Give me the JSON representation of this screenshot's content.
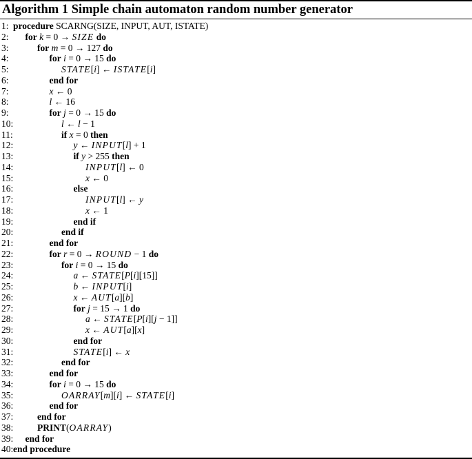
{
  "algorithm": {
    "title": "Algorithm 1 Simple chain automaton random number generator",
    "lines": [
      {
        "n": "1:",
        "indent": 0,
        "parts": [
          {
            "t": "procedure",
            "s": "kw"
          },
          {
            "t": " SCARNG(SIZE, INPUT, AUT, ISTATE)"
          }
        ]
      },
      {
        "n": "2:",
        "indent": 1,
        "parts": [
          {
            "t": "for",
            "s": "kw"
          },
          {
            "t": " "
          },
          {
            "t": "k",
            "s": "v"
          },
          {
            "t": " = 0 → "
          },
          {
            "t": "SIZE",
            "s": "big"
          },
          {
            "t": " "
          },
          {
            "t": "do",
            "s": "kw"
          }
        ]
      },
      {
        "n": "3:",
        "indent": 2,
        "parts": [
          {
            "t": "for",
            "s": "kw"
          },
          {
            "t": " "
          },
          {
            "t": "m",
            "s": "v"
          },
          {
            "t": " = 0 → 127 "
          },
          {
            "t": "do",
            "s": "kw"
          }
        ]
      },
      {
        "n": "4:",
        "indent": 3,
        "parts": [
          {
            "t": "for",
            "s": "kw"
          },
          {
            "t": " "
          },
          {
            "t": "i",
            "s": "v"
          },
          {
            "t": " = 0 → 15 "
          },
          {
            "t": "do",
            "s": "kw"
          }
        ]
      },
      {
        "n": "5:",
        "indent": 4,
        "parts": [
          {
            "t": "STATE",
            "s": "big"
          },
          {
            "t": "["
          },
          {
            "t": "i",
            "s": "v"
          },
          {
            "t": "] ← "
          },
          {
            "t": "ISTATE",
            "s": "big"
          },
          {
            "t": "["
          },
          {
            "t": "i",
            "s": "v"
          },
          {
            "t": "]"
          }
        ]
      },
      {
        "n": "6:",
        "indent": 3,
        "parts": [
          {
            "t": "end for",
            "s": "kw"
          }
        ]
      },
      {
        "n": "7:",
        "indent": 3,
        "parts": [
          {
            "t": "x",
            "s": "v"
          },
          {
            "t": " ← 0"
          }
        ]
      },
      {
        "n": "8:",
        "indent": 3,
        "parts": [
          {
            "t": "l",
            "s": "v"
          },
          {
            "t": " ← 16"
          }
        ]
      },
      {
        "n": "9:",
        "indent": 3,
        "parts": [
          {
            "t": "for",
            "s": "kw"
          },
          {
            "t": " "
          },
          {
            "t": "j",
            "s": "v"
          },
          {
            "t": " = 0 → 15 "
          },
          {
            "t": "do",
            "s": "kw"
          }
        ]
      },
      {
        "n": "10:",
        "indent": 4,
        "parts": [
          {
            "t": "l",
            "s": "v"
          },
          {
            "t": " ← "
          },
          {
            "t": "l",
            "s": "v"
          },
          {
            "t": " − 1"
          }
        ]
      },
      {
        "n": "11:",
        "indent": 4,
        "parts": [
          {
            "t": "if",
            "s": "kw"
          },
          {
            "t": " "
          },
          {
            "t": "x",
            "s": "v"
          },
          {
            "t": " = 0 "
          },
          {
            "t": "then",
            "s": "kw"
          }
        ]
      },
      {
        "n": "12:",
        "indent": 5,
        "parts": [
          {
            "t": "y",
            "s": "v"
          },
          {
            "t": " ← "
          },
          {
            "t": "INPUT",
            "s": "big"
          },
          {
            "t": "["
          },
          {
            "t": "l",
            "s": "v"
          },
          {
            "t": "] + 1"
          }
        ]
      },
      {
        "n": "13:",
        "indent": 5,
        "parts": [
          {
            "t": "if",
            "s": "kw"
          },
          {
            "t": " "
          },
          {
            "t": "y",
            "s": "v"
          },
          {
            "t": " > 255 "
          },
          {
            "t": "then",
            "s": "kw"
          }
        ]
      },
      {
        "n": "14:",
        "indent": 6,
        "parts": [
          {
            "t": "INPUT",
            "s": "big"
          },
          {
            "t": "["
          },
          {
            "t": "l",
            "s": "v"
          },
          {
            "t": "] ← 0"
          }
        ]
      },
      {
        "n": "15:",
        "indent": 6,
        "parts": [
          {
            "t": "x",
            "s": "v"
          },
          {
            "t": " ← 0"
          }
        ]
      },
      {
        "n": "16:",
        "indent": 5,
        "parts": [
          {
            "t": "else",
            "s": "kw"
          }
        ]
      },
      {
        "n": "17:",
        "indent": 6,
        "parts": [
          {
            "t": "INPUT",
            "s": "big"
          },
          {
            "t": "["
          },
          {
            "t": "l",
            "s": "v"
          },
          {
            "t": "] ← "
          },
          {
            "t": "y",
            "s": "v"
          }
        ]
      },
      {
        "n": "18:",
        "indent": 6,
        "parts": [
          {
            "t": "x",
            "s": "v"
          },
          {
            "t": " ← 1"
          }
        ]
      },
      {
        "n": "19:",
        "indent": 5,
        "parts": [
          {
            "t": "end if",
            "s": "kw"
          }
        ]
      },
      {
        "n": "20:",
        "indent": 4,
        "parts": [
          {
            "t": "end if",
            "s": "kw"
          }
        ]
      },
      {
        "n": "21:",
        "indent": 3,
        "parts": [
          {
            "t": "end for",
            "s": "kw"
          }
        ]
      },
      {
        "n": "22:",
        "indent": 3,
        "parts": [
          {
            "t": "for",
            "s": "kw"
          },
          {
            "t": " "
          },
          {
            "t": "r",
            "s": "v"
          },
          {
            "t": " = 0 → "
          },
          {
            "t": "ROUND",
            "s": "big"
          },
          {
            "t": " − 1 "
          },
          {
            "t": "do",
            "s": "kw"
          }
        ]
      },
      {
        "n": "23:",
        "indent": 4,
        "parts": [
          {
            "t": "for",
            "s": "kw"
          },
          {
            "t": " "
          },
          {
            "t": "i",
            "s": "v"
          },
          {
            "t": " = 0 → 15 "
          },
          {
            "t": "do",
            "s": "kw"
          }
        ]
      },
      {
        "n": "24:",
        "indent": 5,
        "parts": [
          {
            "t": "a",
            "s": "v"
          },
          {
            "t": " ← "
          },
          {
            "t": "STATE",
            "s": "big"
          },
          {
            "t": "["
          },
          {
            "t": "P",
            "s": "v"
          },
          {
            "t": "["
          },
          {
            "t": "i",
            "s": "v"
          },
          {
            "t": "][15]]"
          }
        ]
      },
      {
        "n": "25:",
        "indent": 5,
        "parts": [
          {
            "t": "b",
            "s": "v"
          },
          {
            "t": " ← "
          },
          {
            "t": "INPUT",
            "s": "big"
          },
          {
            "t": "["
          },
          {
            "t": "i",
            "s": "v"
          },
          {
            "t": "]"
          }
        ]
      },
      {
        "n": "26:",
        "indent": 5,
        "parts": [
          {
            "t": "x",
            "s": "v"
          },
          {
            "t": " ← "
          },
          {
            "t": "AUT",
            "s": "big"
          },
          {
            "t": "["
          },
          {
            "t": "a",
            "s": "v"
          },
          {
            "t": "]["
          },
          {
            "t": "b",
            "s": "v"
          },
          {
            "t": "]"
          }
        ]
      },
      {
        "n": "27:",
        "indent": 5,
        "parts": [
          {
            "t": "for",
            "s": "kw"
          },
          {
            "t": " "
          },
          {
            "t": "j",
            "s": "v"
          },
          {
            "t": " = 15 → 1 "
          },
          {
            "t": "do",
            "s": "kw"
          }
        ]
      },
      {
        "n": "28:",
        "indent": 6,
        "parts": [
          {
            "t": "a",
            "s": "v"
          },
          {
            "t": " ← "
          },
          {
            "t": "STATE",
            "s": "big"
          },
          {
            "t": "["
          },
          {
            "t": "P",
            "s": "v"
          },
          {
            "t": "["
          },
          {
            "t": "i",
            "s": "v"
          },
          {
            "t": "]["
          },
          {
            "t": "j",
            "s": "v"
          },
          {
            "t": " − 1]]"
          }
        ]
      },
      {
        "n": "29:",
        "indent": 6,
        "parts": [
          {
            "t": "x",
            "s": "v"
          },
          {
            "t": " ← "
          },
          {
            "t": "AUT",
            "s": "big"
          },
          {
            "t": "["
          },
          {
            "t": "a",
            "s": "v"
          },
          {
            "t": "]["
          },
          {
            "t": "x",
            "s": "v"
          },
          {
            "t": "]"
          }
        ]
      },
      {
        "n": "30:",
        "indent": 5,
        "parts": [
          {
            "t": "end for",
            "s": "kw"
          }
        ]
      },
      {
        "n": "31:",
        "indent": 5,
        "parts": [
          {
            "t": "STATE",
            "s": "big"
          },
          {
            "t": "["
          },
          {
            "t": "i",
            "s": "v"
          },
          {
            "t": "] ← "
          },
          {
            "t": "x",
            "s": "v"
          }
        ]
      },
      {
        "n": "32:",
        "indent": 4,
        "parts": [
          {
            "t": "end for",
            "s": "kw"
          }
        ]
      },
      {
        "n": "33:",
        "indent": 3,
        "parts": [
          {
            "t": "end for",
            "s": "kw"
          }
        ]
      },
      {
        "n": "34:",
        "indent": 3,
        "parts": [
          {
            "t": "for",
            "s": "kw"
          },
          {
            "t": " "
          },
          {
            "t": "i",
            "s": "v"
          },
          {
            "t": " = 0 → 15 "
          },
          {
            "t": "do",
            "s": "kw"
          }
        ]
      },
      {
        "n": "35:",
        "indent": 4,
        "parts": [
          {
            "t": "OARRAY",
            "s": "big"
          },
          {
            "t": "["
          },
          {
            "t": "m",
            "s": "v"
          },
          {
            "t": "]["
          },
          {
            "t": "i",
            "s": "v"
          },
          {
            "t": "] ← "
          },
          {
            "t": "STATE",
            "s": "big"
          },
          {
            "t": "["
          },
          {
            "t": "i",
            "s": "v"
          },
          {
            "t": "]"
          }
        ]
      },
      {
        "n": "36:",
        "indent": 3,
        "parts": [
          {
            "t": "end for",
            "s": "kw"
          }
        ]
      },
      {
        "n": "37:",
        "indent": 2,
        "parts": [
          {
            "t": "end for",
            "s": "kw"
          }
        ]
      },
      {
        "n": "38:",
        "indent": 2,
        "parts": [
          {
            "t": "PRINT",
            "s": "kw"
          },
          {
            "t": "("
          },
          {
            "t": "OARRAY",
            "s": "big"
          },
          {
            "t": ")"
          }
        ]
      },
      {
        "n": "39:",
        "indent": 1,
        "parts": [
          {
            "t": "end for",
            "s": "kw"
          }
        ]
      },
      {
        "n": "40:",
        "indent": 0,
        "parts": [
          {
            "t": "end procedure",
            "s": "kw"
          }
        ]
      }
    ]
  }
}
